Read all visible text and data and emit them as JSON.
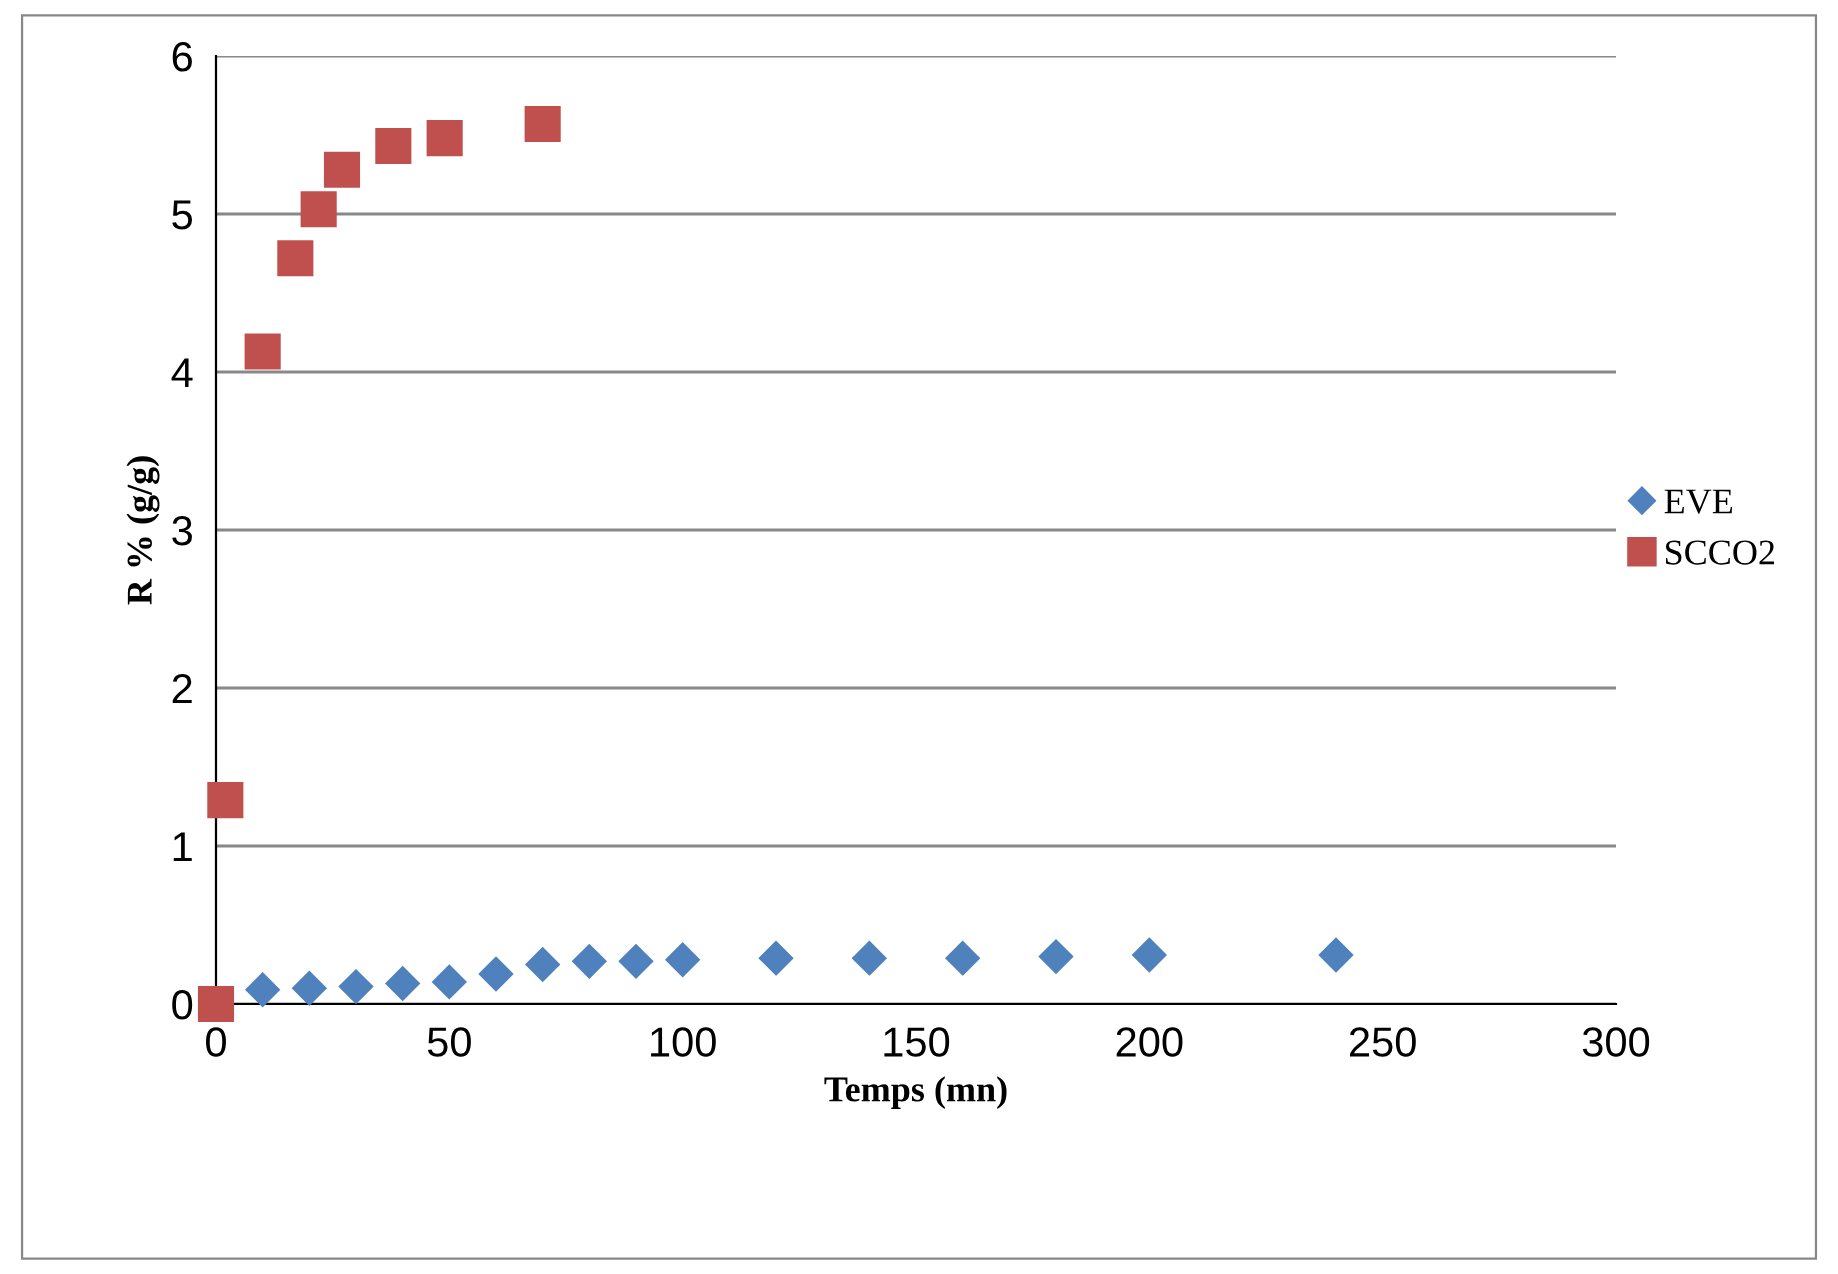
{
  "chart_data": {
    "type": "scatter",
    "xlabel": "Temps (mn)",
    "ylabel": "R % (g/g)",
    "xlim": [
      0,
      300
    ],
    "ylim": [
      0,
      6
    ],
    "xticks": [
      0,
      50,
      100,
      150,
      200,
      250,
      300
    ],
    "yticks": [
      0,
      1,
      2,
      3,
      4,
      5,
      6
    ],
    "grid": "y",
    "legend": "right",
    "series": [
      {
        "name": "EVE",
        "color": "#4f81bd",
        "marker": "diamond",
        "x": [
          10,
          20,
          30,
          40,
          50,
          60,
          70,
          80,
          90,
          100,
          120,
          140,
          160,
          180,
          200,
          240
        ],
        "values": [
          0.09,
          0.1,
          0.11,
          0.13,
          0.14,
          0.19,
          0.25,
          0.27,
          0.27,
          0.28,
          0.29,
          0.29,
          0.29,
          0.3,
          0.31,
          0.31
        ]
      },
      {
        "name": "SCCO2",
        "color": "#c0504d",
        "marker": "square",
        "x": [
          0,
          2,
          10,
          17,
          22,
          27,
          38,
          49,
          70
        ],
        "values": [
          0,
          1.29,
          4.13,
          4.72,
          5.03,
          5.28,
          5.43,
          5.48,
          5.57
        ]
      }
    ]
  }
}
